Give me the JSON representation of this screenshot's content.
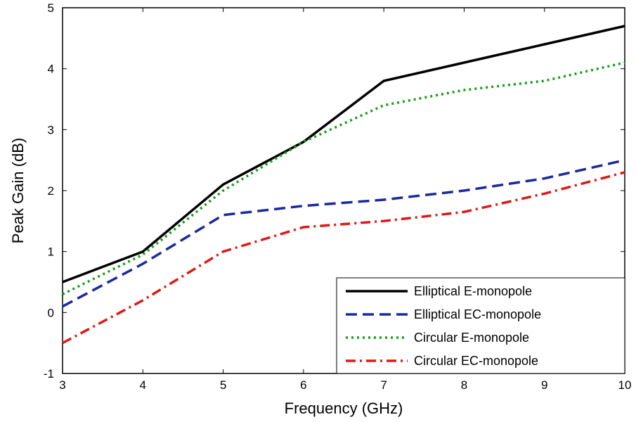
{
  "chart_data": {
    "type": "line",
    "title": "",
    "xlabel": "Frequency (GHz)",
    "ylabel": "Peak Gain (dB)",
    "xlim": [
      3,
      10
    ],
    "ylim": [
      -1,
      5
    ],
    "xticks": [
      "3",
      "4",
      "5",
      "6",
      "7",
      "8",
      "9",
      "10"
    ],
    "yticks": [
      "-1",
      "0",
      "1",
      "2",
      "3",
      "4",
      "5"
    ],
    "grid": false,
    "legend_position": "bottom-right",
    "x": [
      3,
      4,
      5,
      6,
      7,
      8,
      9,
      10
    ],
    "series": [
      {
        "name": "Elliptical E-monopole",
        "color": "#000000",
        "style": "solid",
        "values": [
          0.5,
          1.0,
          2.1,
          2.8,
          3.8,
          4.1,
          4.4,
          4.7
        ]
      },
      {
        "name": "Elliptical EC-monopole",
        "color": "#1a2a9c",
        "style": "dashed",
        "values": [
          0.1,
          0.8,
          1.6,
          1.75,
          1.85,
          2.0,
          2.2,
          2.5
        ]
      },
      {
        "name": "Circular E-monopole",
        "color": "#1a9c1a",
        "style": "dotted",
        "values": [
          0.3,
          0.95,
          2.0,
          2.8,
          3.4,
          3.65,
          3.8,
          4.1
        ]
      },
      {
        "name": "Circular EC-monopole",
        "color": "#dd1a1a",
        "style": "dashdot",
        "values": [
          -0.5,
          0.2,
          1.0,
          1.4,
          1.5,
          1.65,
          1.95,
          2.3
        ]
      }
    ]
  }
}
